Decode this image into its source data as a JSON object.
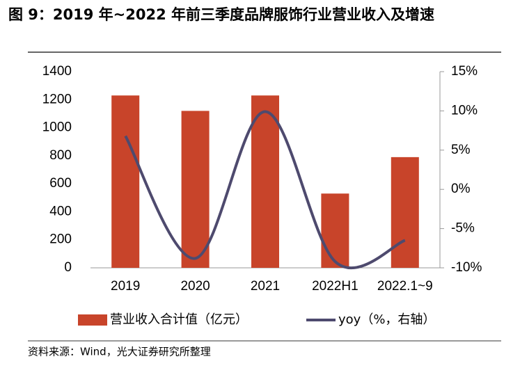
{
  "chart_data": {
    "type": "bar",
    "title": "图 9：2019 年~2022 年前三季度品牌服饰行业营业收入及增速",
    "source": "资料来源：Wind，光大证券研究所整理",
    "categories": [
      "2019",
      "2020",
      "2021",
      "2022H1",
      "2022.1~9"
    ],
    "series": [
      {
        "name": "营业收入合计值（亿元）",
        "type": "bar",
        "color": "#c8442a",
        "values": [
          1230,
          1120,
          1230,
          530,
          790
        ]
      },
      {
        "name": "yoy（%，右轴）",
        "type": "line",
        "axis": "y2",
        "color": "#4e4a6e",
        "values": [
          6.8,
          -8.8,
          9.9,
          -9.2,
          -6.5
        ]
      }
    ],
    "ylim": [
      0,
      1400
    ],
    "yticks": [
      0,
      200,
      400,
      600,
      800,
      1000,
      1200,
      1400
    ],
    "y2lim": [
      -10,
      15
    ],
    "y2ticks": [
      {
        "value": -10,
        "label": "-10%"
      },
      {
        "value": -5,
        "label": "-5%"
      },
      {
        "value": 0,
        "label": "0%"
      },
      {
        "value": 5,
        "label": "5%"
      },
      {
        "value": 10,
        "label": "10%"
      },
      {
        "value": 15,
        "label": "15%"
      }
    ],
    "grid": false
  }
}
